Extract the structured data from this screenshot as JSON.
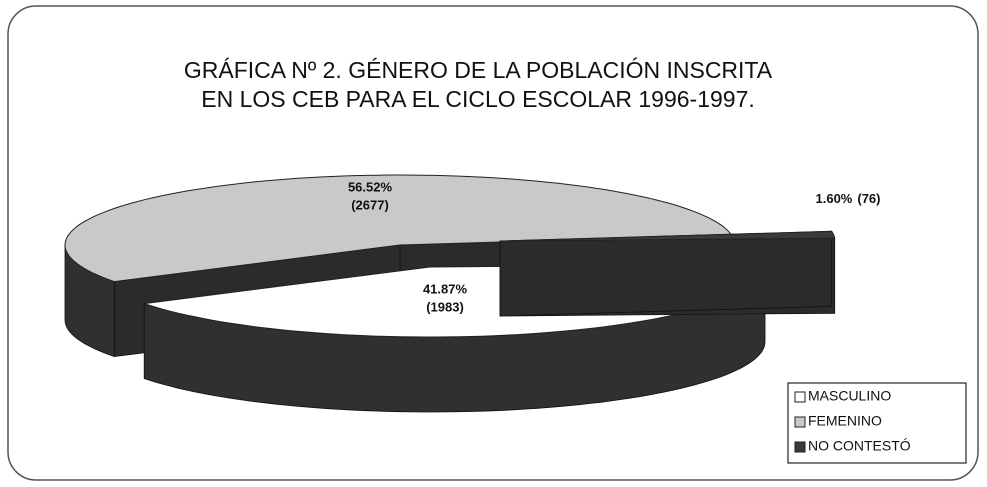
{
  "chart_data": {
    "type": "pie3d",
    "title": [
      "GRÁFICA Nº 2. GÉNERO DE LA POBLACIÓN INSCRITA",
      "EN LOS CEB PARA EL CICLO ESCOLAR 1996-1997."
    ],
    "categories": [
      "MASCULINO",
      "FEMENINO",
      "NO CONTESTÓ"
    ],
    "values": [
      41.87,
      56.52,
      1.6
    ],
    "value_labels": [
      "41.87%",
      "56.52%",
      "1.60%"
    ],
    "count_labels": [
      "(1983)",
      "(2677)",
      "(76)"
    ],
    "colors": [
      "#ffffff",
      "#c9c9c9",
      "#3a3a3a"
    ],
    "legend": "lower right"
  }
}
